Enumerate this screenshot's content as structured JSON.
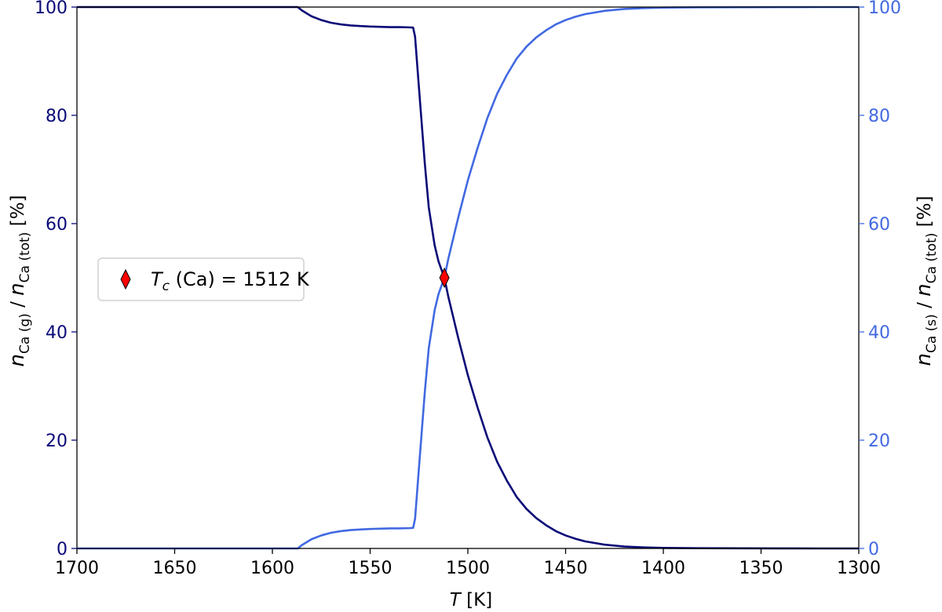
{
  "chart_data": {
    "type": "line",
    "xlabel": {
      "italic": "T",
      "rest": " [K]"
    },
    "ylabel_left": {
      "n": "n",
      "sub1": "Ca (g)",
      "slash": " / ",
      "n2": "n",
      "sub2": "Ca (tot)",
      "unit": " [%]"
    },
    "ylabel_right": {
      "n": "n",
      "sub1": "Ca (s)",
      "slash": " / ",
      "n2": "n",
      "sub2": "Ca (tot)",
      "unit": " [%]"
    },
    "xlim": [
      1700,
      1300
    ],
    "ylim": [
      0,
      100
    ],
    "x_ticks": [
      "1700",
      "1650",
      "1600",
      "1550",
      "1500",
      "1450",
      "1400",
      "1350",
      "1300"
    ],
    "y_ticks": [
      "0",
      "20",
      "40",
      "60",
      "80",
      "100"
    ],
    "series": [
      {
        "axis": "left",
        "color": "#0a0a78",
        "x": [
          1700,
          1650,
          1600,
          1587,
          1585,
          1580,
          1575,
          1570,
          1565,
          1560,
          1555,
          1550,
          1545,
          1540,
          1535,
          1530,
          1528,
          1527,
          1525,
          1522,
          1520,
          1517,
          1515,
          1512,
          1510,
          1505,
          1500,
          1495,
          1490,
          1485,
          1480,
          1475,
          1470,
          1465,
          1460,
          1455,
          1450,
          1445,
          1440,
          1430,
          1420,
          1410,
          1400,
          1380,
          1360,
          1340,
          1320,
          1300
        ],
        "y": [
          100,
          100,
          100,
          100,
          99.4,
          98.3,
          97.6,
          97.1,
          96.8,
          96.6,
          96.5,
          96.4,
          96.35,
          96.3,
          96.3,
          96.25,
          96.2,
          94.5,
          85,
          71,
          63,
          56,
          53,
          50,
          46.5,
          39,
          32,
          26,
          20.5,
          16,
          12.5,
          9.5,
          7.3,
          5.6,
          4.3,
          3.2,
          2.4,
          1.8,
          1.3,
          0.7,
          0.35,
          0.2,
          0.1,
          0.04,
          0.02,
          0.01,
          0,
          0
        ]
      },
      {
        "axis": "right",
        "color": "#4169e1",
        "x": [
          1700,
          1650,
          1600,
          1587,
          1585,
          1580,
          1575,
          1570,
          1565,
          1560,
          1555,
          1550,
          1545,
          1540,
          1535,
          1530,
          1528,
          1527,
          1525,
          1522,
          1520,
          1517,
          1515,
          1512,
          1510,
          1505,
          1500,
          1495,
          1490,
          1485,
          1480,
          1475,
          1470,
          1465,
          1460,
          1455,
          1450,
          1445,
          1440,
          1430,
          1420,
          1410,
          1400,
          1380,
          1360,
          1340,
          1320,
          1300
        ],
        "y": [
          0,
          0,
          0,
          0,
          0.6,
          1.7,
          2.4,
          2.9,
          3.2,
          3.4,
          3.5,
          3.6,
          3.65,
          3.7,
          3.7,
          3.75,
          3.8,
          5.5,
          15,
          29,
          37,
          44,
          47,
          50,
          53.5,
          61,
          68,
          74,
          79.5,
          84,
          87.5,
          90.5,
          92.7,
          94.4,
          95.7,
          96.8,
          97.6,
          98.2,
          98.7,
          99.3,
          99.65,
          99.8,
          99.9,
          99.96,
          99.98,
          99.99,
          100,
          100
        ]
      }
    ],
    "marker": {
      "x": 1512,
      "y": 50,
      "color": "#ff0000",
      "shape": "diamond"
    },
    "legend": {
      "position": "center-left",
      "label_italic": "T",
      "label_sub": "c",
      "label_rest": " (Ca) = 1512 K"
    },
    "colors": {
      "left_axis": "#0a0a78",
      "right_axis": "#4169e1"
    },
    "grid": false
  }
}
